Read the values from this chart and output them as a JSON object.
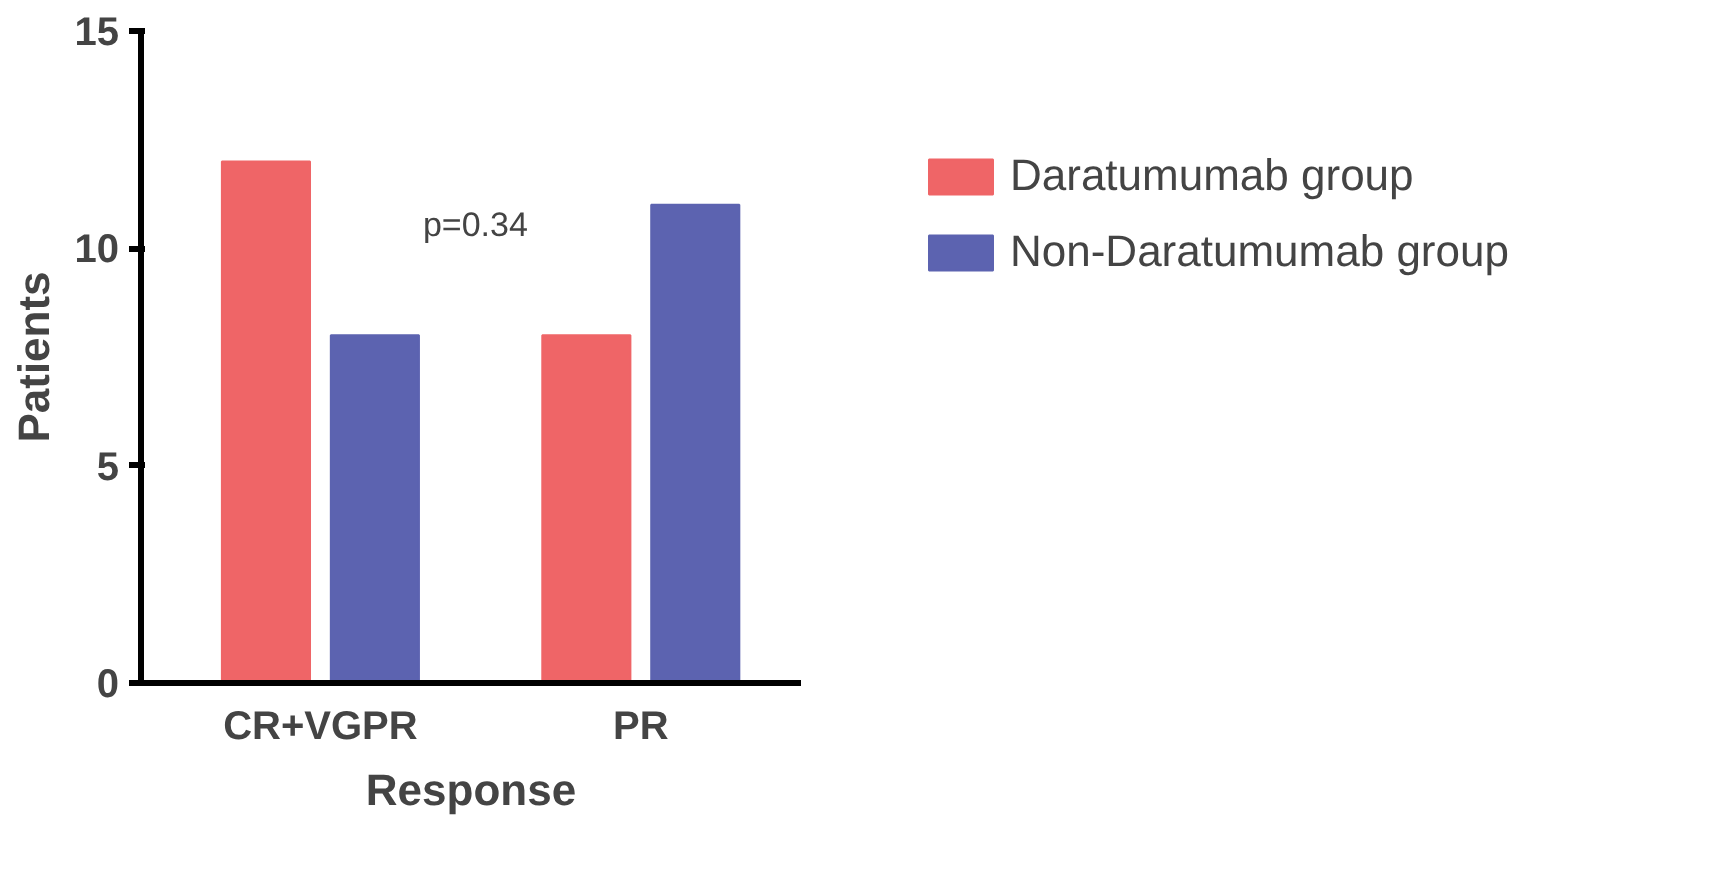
{
  "chart_data": {
    "type": "bar",
    "xlabel": "Response",
    "ylabel": "Patients",
    "categories": [
      "CR+VGPR",
      "PR"
    ],
    "series": [
      {
        "name": "Daratumumab group",
        "color": "#ef6567",
        "values": [
          12,
          8
        ]
      },
      {
        "name": "Non-Daratumumab group",
        "color": "#5c63b0",
        "values": [
          8,
          11
        ]
      }
    ],
    "ylim": [
      0,
      15
    ],
    "yticks": [
      0,
      5,
      10,
      15
    ],
    "grid": false,
    "legend": "top right",
    "annotations": [
      "p=0.34"
    ]
  }
}
